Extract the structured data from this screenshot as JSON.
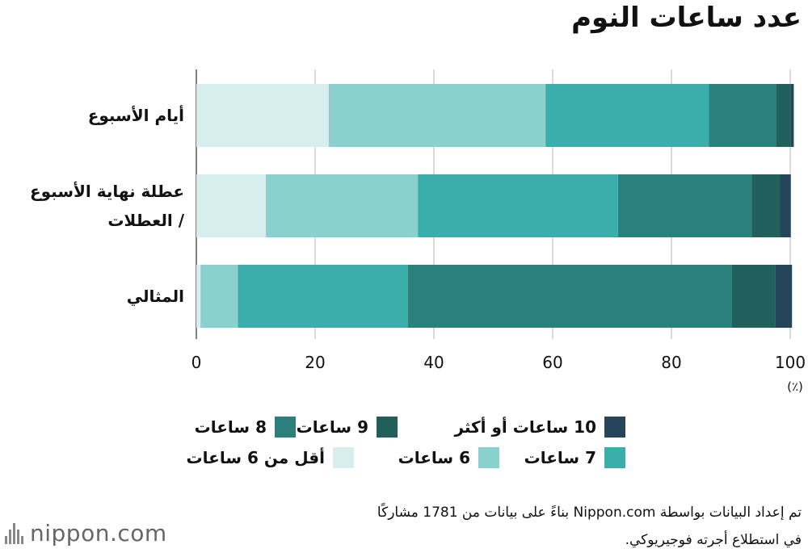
{
  "chart_data": {
    "type": "bar",
    "orientation": "horizontal",
    "stacked": true,
    "title": "عدد ساعات النوم",
    "unit_label": "(٪)",
    "xlim": [
      0,
      100
    ],
    "x_ticks": [
      0,
      20,
      40,
      60,
      80,
      100
    ],
    "grid": true,
    "categories": [
      "أيام الأسبوع",
      "عطلة نهاية الأسبوع / العطلات",
      "المثالي"
    ],
    "series": [
      {
        "name": "أقل من 6 ساعات",
        "color": "#d6eeee",
        "values": [
          22.3,
          11.7,
          0.7
        ]
      },
      {
        "name": "6 ساعات",
        "color": "#8ad0cd",
        "values": [
          36.5,
          25.6,
          6.3
        ]
      },
      {
        "name": "7 ساعات",
        "color": "#3aaeab",
        "values": [
          27.5,
          33.7,
          28.6
        ]
      },
      {
        "name": "8 ساعات",
        "color": "#2b807b",
        "values": [
          11.3,
          22.5,
          54.6
        ]
      },
      {
        "name": "9 ساعات",
        "color": "#205f5b",
        "values": [
          2.5,
          4.8,
          7.3
        ]
      },
      {
        "name": "10 ساعات أو أكثر",
        "color": "#27455a",
        "values": [
          0.5,
          1.8,
          2.8
        ]
      }
    ],
    "legend_placement": "bottom"
  },
  "source": {
    "line1": "تم إعداد البيانات بواسطة Nippon.com بناءً على بيانات من 1781 مشاركًا",
    "line2": "في استطلاع أجرته فوجيريوكي."
  },
  "logo": {
    "text": "nippon.com",
    "icon": "nippon-bars-icon"
  }
}
